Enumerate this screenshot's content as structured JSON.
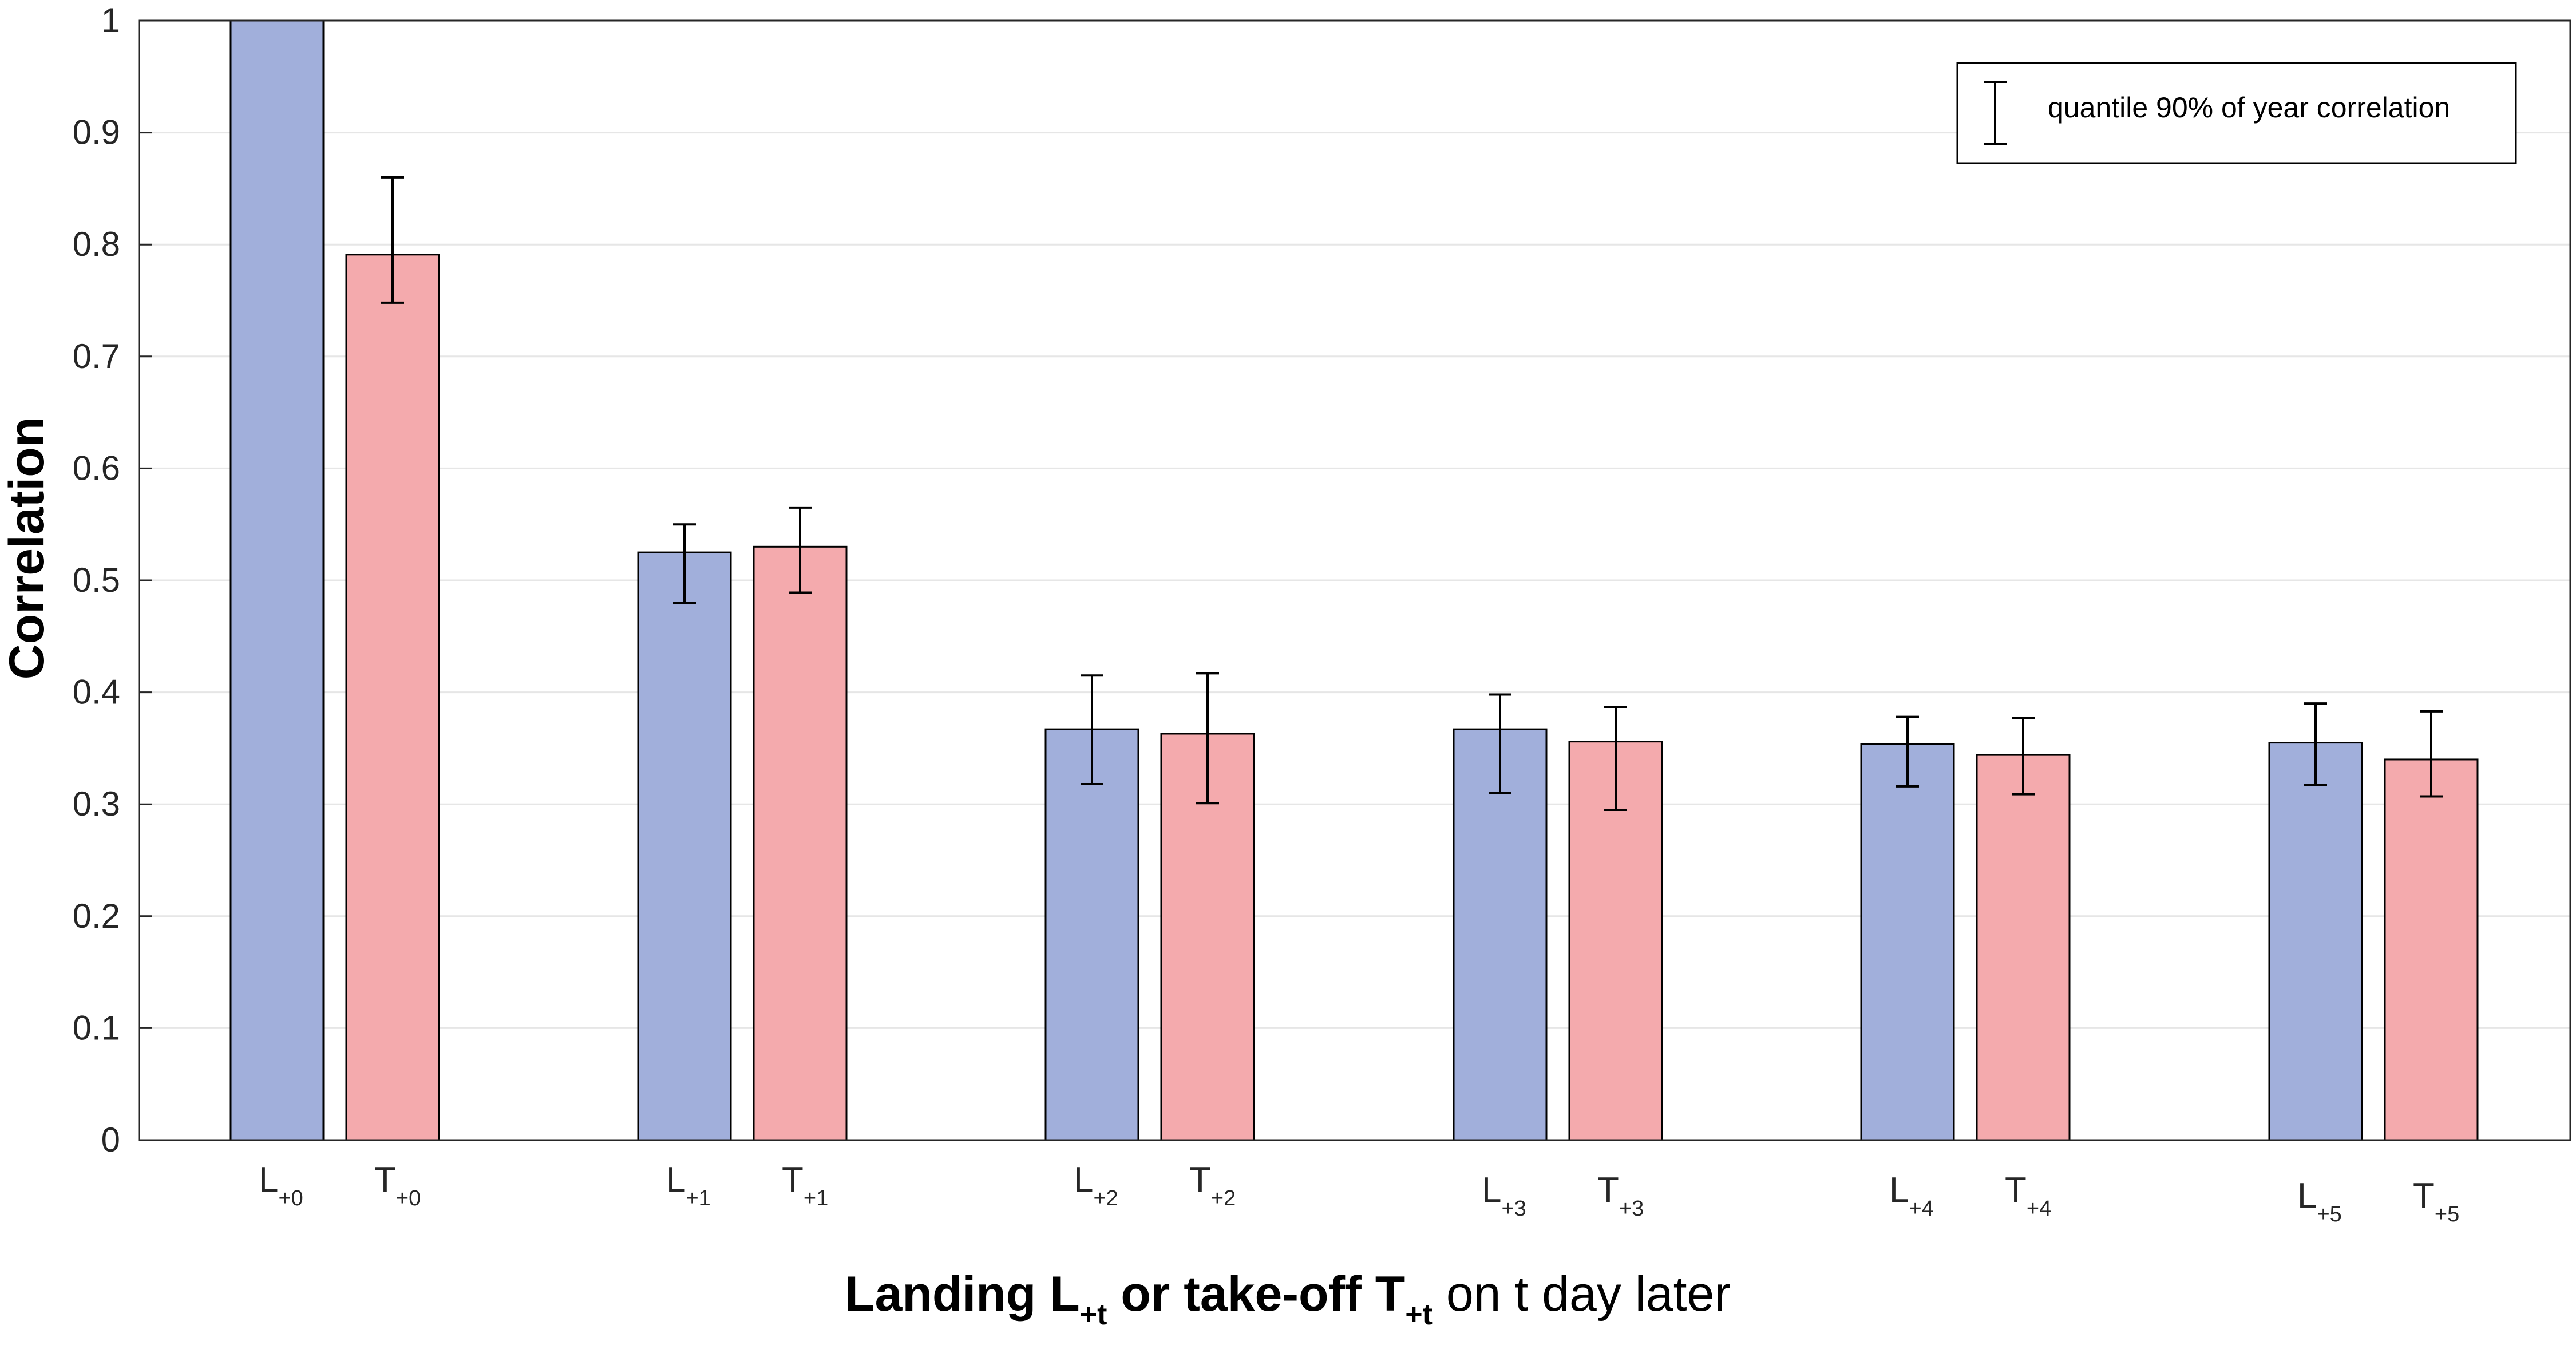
{
  "chart_data": {
    "type": "bar",
    "ylabel": "Correlation",
    "xlabel": {
      "part1": "Landing L",
      "sub1": "+t",
      "part2": " or take-off T",
      "sub2": "+t",
      "part3": " on t day later"
    },
    "ylim": [
      0,
      1
    ],
    "yticks": [
      "0",
      "0.1",
      "0.2",
      "0.3",
      "0.4",
      "0.5",
      "0.6",
      "0.7",
      "0.8",
      "0.9",
      "1"
    ],
    "grid": "horizontal",
    "legend": {
      "placement": "top-right",
      "label": "quantile 90% of year correlation",
      "symbol": "errorbar"
    },
    "colors": {
      "landing": "#a1afdb",
      "takeoff": "#f4aaad",
      "edge": "#000000",
      "grid": "#e6e6e6"
    },
    "bars": [
      {
        "group": 0,
        "kind": "landing",
        "letter": "L",
        "sub": "+0",
        "value": 1.0,
        "low": null,
        "high": null
      },
      {
        "group": 0,
        "kind": "takeoff",
        "letter": "T",
        "sub": "+0",
        "value": 0.791,
        "low": 0.748,
        "high": 0.86
      },
      {
        "group": 1,
        "kind": "landing",
        "letter": "L",
        "sub": "+1",
        "value": 0.525,
        "low": 0.48,
        "high": 0.55
      },
      {
        "group": 1,
        "kind": "takeoff",
        "letter": "T",
        "sub": "+1",
        "value": 0.53,
        "low": 0.489,
        "high": 0.565
      },
      {
        "group": 2,
        "kind": "landing",
        "letter": "L",
        "sub": "+2",
        "value": 0.367,
        "low": 0.318,
        "high": 0.415
      },
      {
        "group": 2,
        "kind": "takeoff",
        "letter": "T",
        "sub": "+2",
        "value": 0.363,
        "low": 0.301,
        "high": 0.417
      },
      {
        "group": 3,
        "kind": "landing",
        "letter": "L",
        "sub": "+3",
        "value": 0.367,
        "low": 0.31,
        "high": 0.398
      },
      {
        "group": 3,
        "kind": "takeoff",
        "letter": "T",
        "sub": "+3",
        "value": 0.356,
        "low": 0.295,
        "high": 0.387
      },
      {
        "group": 4,
        "kind": "landing",
        "letter": "L",
        "sub": "+4",
        "value": 0.354,
        "low": 0.316,
        "high": 0.378
      },
      {
        "group": 4,
        "kind": "takeoff",
        "letter": "T",
        "sub": "+4",
        "value": 0.344,
        "low": 0.309,
        "high": 0.377
      },
      {
        "group": 5,
        "kind": "landing",
        "letter": "L",
        "sub": "+5",
        "value": 0.355,
        "low": 0.317,
        "high": 0.39
      },
      {
        "group": 5,
        "kind": "takeoff",
        "letter": "T",
        "sub": "+5",
        "value": 0.34,
        "low": 0.307,
        "high": 0.383
      }
    ]
  }
}
